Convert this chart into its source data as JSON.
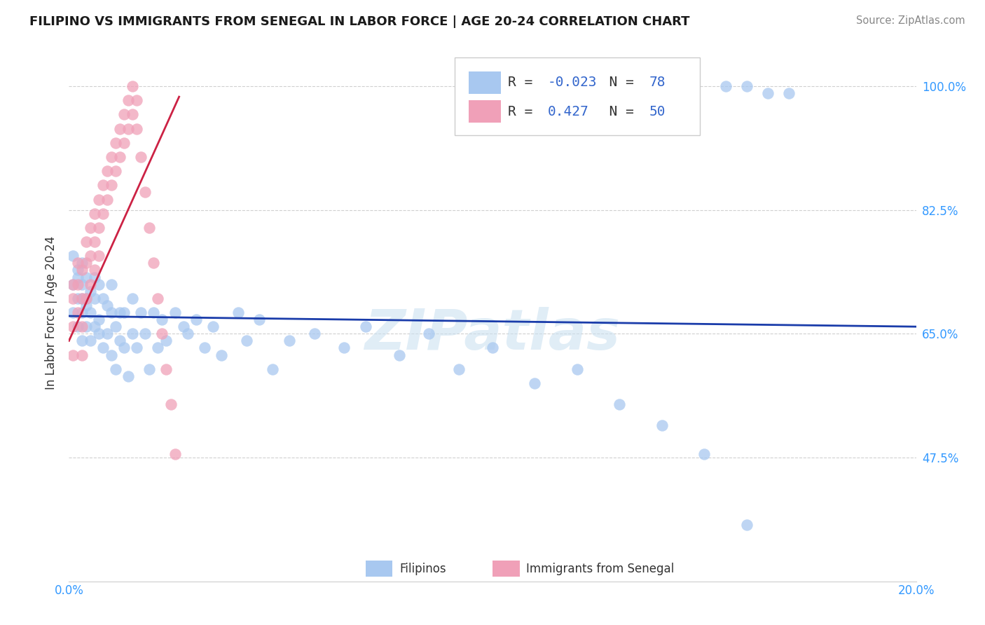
{
  "title": "FILIPINO VS IMMIGRANTS FROM SENEGAL IN LABOR FORCE | AGE 20-24 CORRELATION CHART",
  "source": "Source: ZipAtlas.com",
  "ylabel": "In Labor Force | Age 20-24",
  "xlim": [
    0.0,
    0.2
  ],
  "ylim": [
    0.3,
    1.06
  ],
  "ytick_values": [
    0.475,
    0.65,
    0.825,
    1.0
  ],
  "ytick_labels": [
    "47.5%",
    "65.0%",
    "82.5%",
    "100.0%"
  ],
  "grid_color": "#d0d0d0",
  "legend": {
    "filipino_R": "-0.023",
    "filipino_N": "78",
    "senegal_R": "0.427",
    "senegal_N": "50",
    "filipino_color": "#a8c8f0",
    "senegal_color": "#f0a0b8"
  },
  "trendline_filipino_color": "#1a3caa",
  "trendline_senegal_color": "#cc2244",
  "filipino_scatter_color": "#a8c8f0",
  "senegal_scatter_color": "#f0a0b8",
  "watermark_color": "#c8dff0",
  "title_color": "#1a1a1a",
  "source_color": "#888888",
  "axis_label_color": "#333333",
  "tick_color": "#3399ff",
  "fil_x": [
    0.001,
    0.001,
    0.001,
    0.002,
    0.002,
    0.002,
    0.002,
    0.003,
    0.003,
    0.003,
    0.003,
    0.003,
    0.004,
    0.004,
    0.004,
    0.004,
    0.005,
    0.005,
    0.005,
    0.006,
    0.006,
    0.006,
    0.007,
    0.007,
    0.007,
    0.008,
    0.008,
    0.009,
    0.009,
    0.01,
    0.01,
    0.01,
    0.011,
    0.011,
    0.012,
    0.012,
    0.013,
    0.013,
    0.014,
    0.015,
    0.015,
    0.016,
    0.017,
    0.018,
    0.019,
    0.02,
    0.021,
    0.022,
    0.023,
    0.025,
    0.027,
    0.028,
    0.03,
    0.032,
    0.034,
    0.036,
    0.04,
    0.042,
    0.045,
    0.048,
    0.052,
    0.058,
    0.065,
    0.07,
    0.078,
    0.085,
    0.092,
    0.1,
    0.11,
    0.12,
    0.13,
    0.14,
    0.15,
    0.155,
    0.16,
    0.165,
    0.17,
    0.16
  ],
  "fil_y": [
    0.76,
    0.72,
    0.68,
    0.74,
    0.7,
    0.66,
    0.73,
    0.7,
    0.75,
    0.68,
    0.64,
    0.72,
    0.69,
    0.73,
    0.66,
    0.7,
    0.68,
    0.64,
    0.71,
    0.66,
    0.7,
    0.73,
    0.67,
    0.72,
    0.65,
    0.63,
    0.7,
    0.65,
    0.69,
    0.62,
    0.68,
    0.72,
    0.66,
    0.6,
    0.64,
    0.68,
    0.63,
    0.68,
    0.59,
    0.65,
    0.7,
    0.63,
    0.68,
    0.65,
    0.6,
    0.68,
    0.63,
    0.67,
    0.64,
    0.68,
    0.66,
    0.65,
    0.67,
    0.63,
    0.66,
    0.62,
    0.68,
    0.64,
    0.67,
    0.6,
    0.64,
    0.65,
    0.63,
    0.66,
    0.62,
    0.65,
    0.6,
    0.63,
    0.58,
    0.6,
    0.55,
    0.52,
    0.48,
    1.0,
    1.0,
    0.99,
    0.99,
    0.38
  ],
  "sen_x": [
    0.001,
    0.001,
    0.001,
    0.001,
    0.002,
    0.002,
    0.002,
    0.003,
    0.003,
    0.003,
    0.003,
    0.004,
    0.004,
    0.004,
    0.005,
    0.005,
    0.005,
    0.006,
    0.006,
    0.006,
    0.007,
    0.007,
    0.007,
    0.008,
    0.008,
    0.009,
    0.009,
    0.01,
    0.01,
    0.011,
    0.011,
    0.012,
    0.012,
    0.013,
    0.013,
    0.014,
    0.014,
    0.015,
    0.015,
    0.016,
    0.016,
    0.017,
    0.018,
    0.019,
    0.02,
    0.021,
    0.022,
    0.023,
    0.024,
    0.025
  ],
  "sen_y": [
    0.72,
    0.7,
    0.66,
    0.62,
    0.75,
    0.72,
    0.68,
    0.74,
    0.7,
    0.66,
    0.62,
    0.78,
    0.75,
    0.7,
    0.8,
    0.76,
    0.72,
    0.82,
    0.78,
    0.74,
    0.84,
    0.8,
    0.76,
    0.86,
    0.82,
    0.88,
    0.84,
    0.9,
    0.86,
    0.92,
    0.88,
    0.94,
    0.9,
    0.96,
    0.92,
    0.98,
    0.94,
    1.0,
    0.96,
    0.98,
    0.94,
    0.9,
    0.85,
    0.8,
    0.75,
    0.7,
    0.65,
    0.6,
    0.55,
    0.48
  ],
  "fil_trend_x": [
    0.0,
    0.2
  ],
  "fil_trend_y": [
    0.675,
    0.66
  ],
  "sen_trend_x": [
    0.0,
    0.026
  ],
  "sen_trend_y": [
    0.64,
    0.985
  ]
}
